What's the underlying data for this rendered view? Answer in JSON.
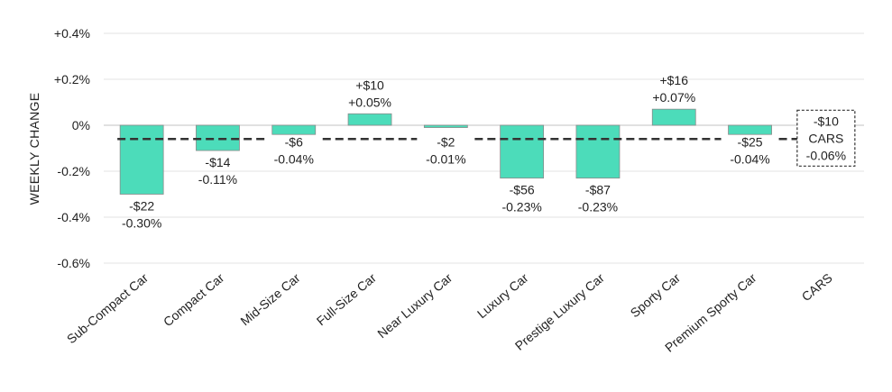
{
  "chart_data": {
    "type": "bar",
    "ylabel": "WEEKLY CHANGE",
    "ylim": [
      -0.6,
      0.4
    ],
    "yticks": [
      {
        "value": 0.4,
        "label": "+0.4%"
      },
      {
        "value": 0.2,
        "label": "+0.2%"
      },
      {
        "value": 0.0,
        "label": "0%"
      },
      {
        "value": -0.2,
        "label": "-0.2%"
      },
      {
        "value": -0.4,
        "label": "-0.4%"
      },
      {
        "value": -0.6,
        "label": "-0.6%"
      }
    ],
    "grid": true,
    "bar_color": "#4cdcba",
    "categories": [
      "Sub-Compact Car",
      "Compact Car",
      "Mid-Size Car",
      "Full-Size Car",
      "Near Luxury Car",
      "Luxury Car",
      "Prestige Luxury Car",
      "Sporty Car",
      "Premium Sporty Car",
      "CARS"
    ],
    "values": [
      -0.3,
      -0.11,
      -0.04,
      0.05,
      -0.01,
      -0.23,
      -0.23,
      0.07,
      -0.04,
      null
    ],
    "data_labels": [
      {
        "dollar": "-$22",
        "pct": "-0.30%"
      },
      {
        "dollar": "-$14",
        "pct": "-0.11%"
      },
      {
        "dollar": "-$6",
        "pct": "-0.04%"
      },
      {
        "dollar": "+$10",
        "pct": "+0.05%"
      },
      {
        "dollar": "-$2",
        "pct": "-0.01%"
      },
      {
        "dollar": "-$56",
        "pct": "-0.23%"
      },
      {
        "dollar": "-$87",
        "pct": "-0.23%"
      },
      {
        "dollar": "+$16",
        "pct": "+0.07%"
      },
      {
        "dollar": "-$25",
        "pct": "-0.04%"
      },
      null
    ],
    "average": {
      "value": -0.06,
      "dollar": "-$10",
      "label": "CARS",
      "pct": "-0.06%"
    }
  }
}
